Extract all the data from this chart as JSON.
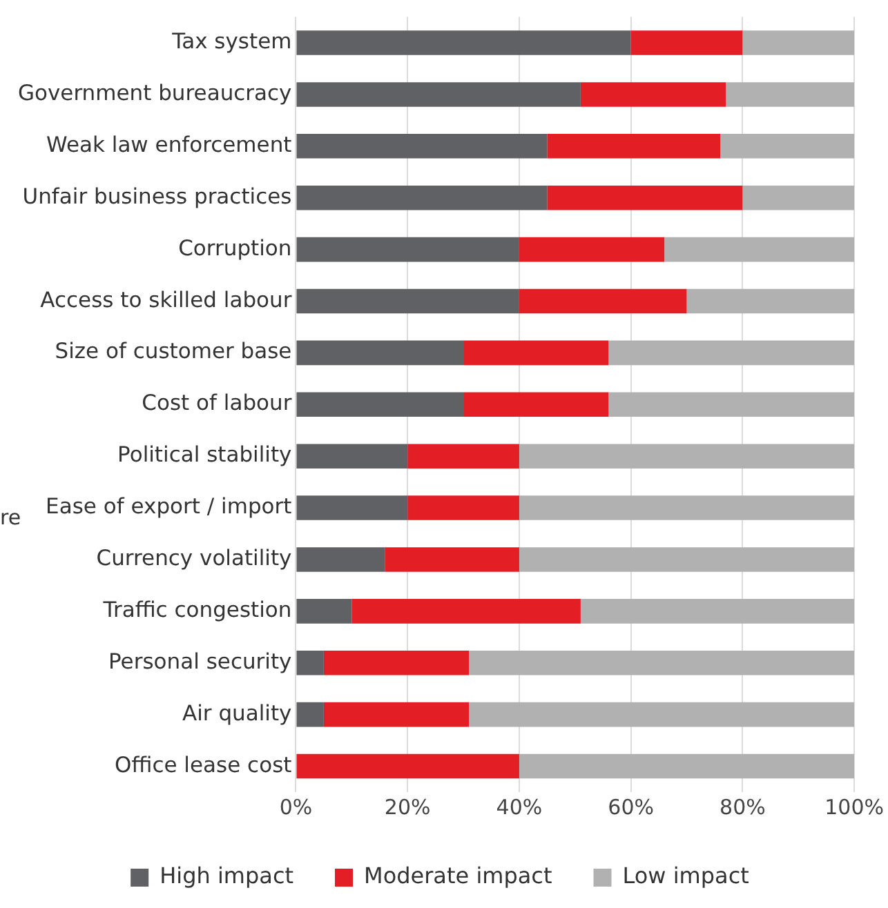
{
  "chart_data": {
    "type": "bar",
    "orientation": "horizontal",
    "stacked": true,
    "categories": [
      "Tax system",
      "Government bureaucracy",
      "Weak law enforcement",
      "Unfair business practices",
      "Corruption",
      "Access to skilled labour",
      "Size of customer base",
      "Cost of labour",
      "Political stability",
      "Ease of export / import",
      "Currency volatility",
      "Traffic congestion",
      "Personal security",
      "Air quality",
      "Office lease cost"
    ],
    "series": [
      {
        "name": "High impact",
        "color": "#606165",
        "values": [
          60,
          51,
          45,
          45,
          40,
          40,
          30,
          30,
          20,
          20,
          16,
          10,
          5,
          5,
          0
        ]
      },
      {
        "name": "Moderate impact",
        "color": "#e31e24",
        "values": [
          20,
          26,
          31,
          35,
          26,
          30,
          26,
          26,
          20,
          20,
          24,
          41,
          26,
          26,
          40
        ]
      },
      {
        "name": "Low impact",
        "color": "#b1b1b1",
        "values": [
          20,
          23,
          24,
          20,
          34,
          30,
          44,
          44,
          60,
          60,
          60,
          49,
          69,
          69,
          60
        ]
      }
    ],
    "xlim": [
      0,
      100
    ],
    "xticks": [
      {
        "value": 0,
        "label": "0%"
      },
      {
        "value": 20,
        "label": "20%"
      },
      {
        "value": 40,
        "label": "40%"
      },
      {
        "value": 60,
        "label": "60%"
      },
      {
        "value": 80,
        "label": "80%"
      },
      {
        "value": 100,
        "label": "100%"
      }
    ],
    "grid": "x",
    "legend": "bottom",
    "annotations": [
      "re"
    ]
  }
}
